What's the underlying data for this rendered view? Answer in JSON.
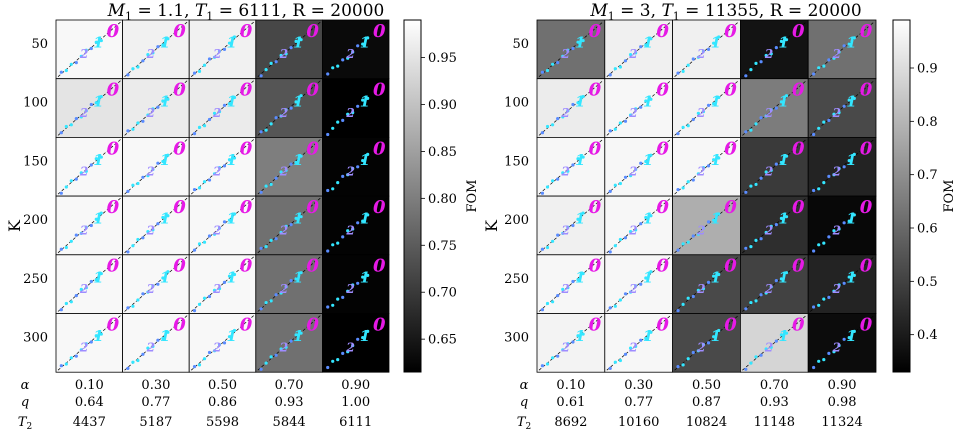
{
  "chart_data": [
    {
      "type": "heatmap",
      "title": "M1 = 1.1, T1 = 6111, R = 20000",
      "title_parts": {
        "m": "M",
        "m_sub": "1",
        "m_val": " = 1.1, ",
        "t": "T",
        "t_sub": "1",
        "t_val": " = 6111, R = 20000"
      },
      "ylabel": "K",
      "rows": [
        "50",
        "100",
        "150",
        "200",
        "250",
        "300"
      ],
      "alpha": [
        "0.10",
        "0.30",
        "0.50",
        "0.70",
        "0.90"
      ],
      "q": [
        "0.64",
        "0.77",
        "0.86",
        "0.93",
        "1.00"
      ],
      "T2": [
        "4437",
        "5187",
        "5598",
        "5844",
        "6111"
      ],
      "fom": [
        [
          0.98,
          0.97,
          0.97,
          0.72,
          0.63
        ],
        [
          0.95,
          0.96,
          0.96,
          0.74,
          0.61
        ],
        [
          0.98,
          0.98,
          0.98,
          0.8,
          0.62
        ],
        [
          0.98,
          0.98,
          0.98,
          0.78,
          0.62
        ],
        [
          0.98,
          0.98,
          0.98,
          0.78,
          0.62
        ],
        [
          0.98,
          0.98,
          0.98,
          0.78,
          0.61
        ]
      ],
      "colorbar": {
        "label": "FOM",
        "min": 0.615,
        "max": 0.99,
        "ticks": [
          "0.65",
          "0.70",
          "0.75",
          "0.80",
          "0.85",
          "0.90",
          "0.95"
        ]
      }
    },
    {
      "type": "heatmap",
      "title": "M1 = 3, T1 = 11355, R = 20000",
      "title_parts": {
        "m": "M",
        "m_sub": "1",
        "m_val": " = 3, ",
        "t": "T",
        "t_sub": "1",
        "t_val": " = 11355, R = 20000"
      },
      "ylabel": "K",
      "rows": [
        "50",
        "100",
        "150",
        "200",
        "250",
        "300"
      ],
      "alpha": [
        "0.10",
        "0.30",
        "0.50",
        "0.70",
        "0.90"
      ],
      "q": [
        "0.61",
        "0.77",
        "0.87",
        "0.93",
        "0.98"
      ],
      "T2": [
        "8692",
        "10160",
        "10824",
        "11148",
        "11324"
      ],
      "fom": [
        [
          0.62,
          0.95,
          0.95,
          0.38,
          0.62
        ],
        [
          0.94,
          0.97,
          0.96,
          0.65,
          0.52
        ],
        [
          0.97,
          0.97,
          0.97,
          0.48,
          0.42
        ],
        [
          0.95,
          0.97,
          0.78,
          0.45,
          0.35
        ],
        [
          0.97,
          0.97,
          0.52,
          0.5,
          0.42
        ],
        [
          0.96,
          0.97,
          0.52,
          0.88,
          0.36
        ]
      ],
      "colorbar": {
        "label": "FOM",
        "min": 0.33,
        "max": 0.99,
        "ticks": [
          "0.4",
          "0.5",
          "0.6",
          "0.7",
          "0.8",
          "0.9"
        ]
      }
    }
  ],
  "row_labels": {
    "alpha": "α",
    "q": "q",
    "t": "T",
    "t_sub": "2"
  },
  "digit_glyphs": [
    "5",
    "4",
    "3",
    "2",
    "1",
    "0"
  ]
}
